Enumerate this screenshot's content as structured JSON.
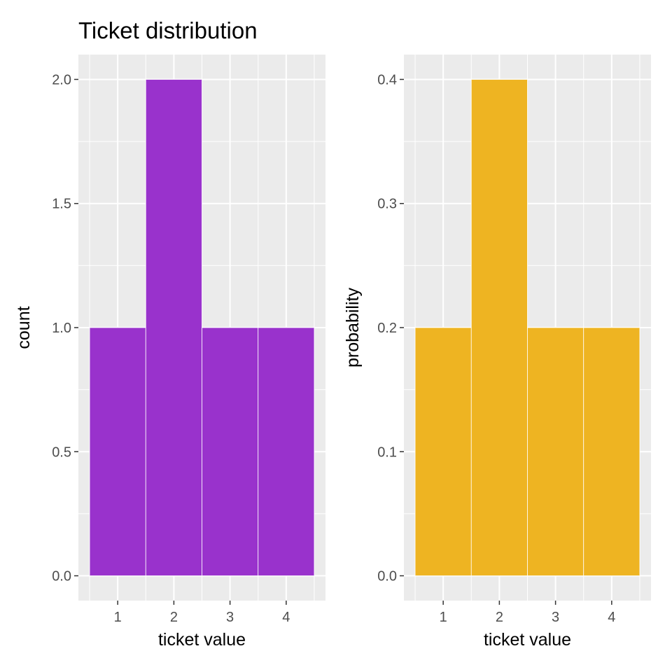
{
  "title": "Ticket distribution",
  "chart_data": [
    {
      "type": "bar",
      "categories": [
        "1",
        "2",
        "3",
        "4"
      ],
      "values": [
        1,
        2,
        1,
        1
      ],
      "xlabel": "ticket value",
      "ylabel": "count",
      "ylim": [
        0,
        2.0
      ],
      "yticks": [
        "0.0",
        "0.5",
        "1.0",
        "1.5",
        "2.0"
      ],
      "yticks_values": [
        0,
        0.5,
        1.0,
        1.5,
        2.0
      ],
      "bar_color": "#9932CC",
      "panel_background": "#EBEBEB",
      "grid": true
    },
    {
      "type": "bar",
      "categories": [
        "1",
        "2",
        "3",
        "4"
      ],
      "values": [
        0.2,
        0.4,
        0.2,
        0.2
      ],
      "xlabel": "ticket value",
      "ylabel": "probability",
      "ylim": [
        0,
        0.4
      ],
      "yticks": [
        "0.0",
        "0.1",
        "0.2",
        "0.3",
        "0.4"
      ],
      "yticks_values": [
        0,
        0.1,
        0.2,
        0.3,
        0.4
      ],
      "bar_color": "#EEB422",
      "panel_background": "#EBEBEB",
      "grid": true
    }
  ]
}
